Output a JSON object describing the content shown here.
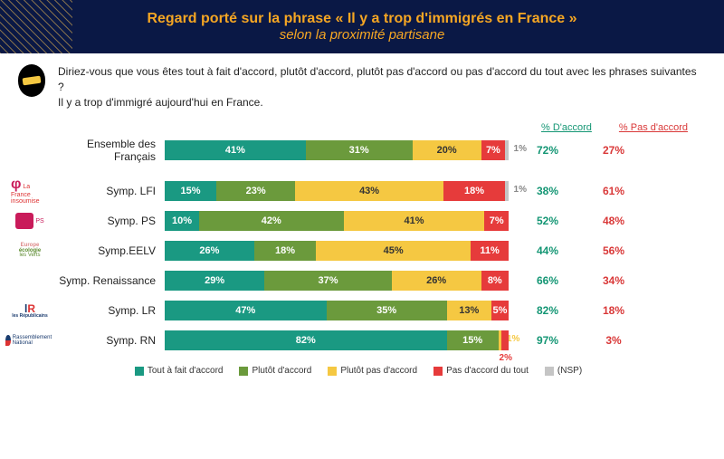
{
  "header": {
    "title": "Regard porté sur la phrase « Il y a trop d'immigrés en France »",
    "subtitle": "selon la proximité partisane"
  },
  "question": {
    "line1": "Diriez-vous que vous êtes tout à fait d'accord, plutôt d'accord, plutôt pas d'accord ou pas d'accord du tout avec les phrases suivantes ?",
    "line2": "Il y a trop d'immigré aujourd'hui en France."
  },
  "colors": {
    "tout_a_fait": "#1a9982",
    "plutot": "#6b9a3c",
    "plutot_pas": "#f5c842",
    "pas_du_tout": "#e63b3b",
    "nsp": "#c5c5c5",
    "agree_text": "#149674",
    "disagree_text": "#d93838"
  },
  "table_head": {
    "agree": "% D'accord",
    "disagree": "% Pas d'accord"
  },
  "rows": [
    {
      "label": "Ensemble des Français",
      "logo": null,
      "segments": [
        41,
        31,
        20,
        7,
        1
      ],
      "agree": 72,
      "disagree": 27
    }
  ],
  "party_rows": [
    {
      "label": "Symp. LFI",
      "logo": "lfi",
      "segments": [
        15,
        23,
        43,
        18,
        1
      ],
      "agree": 38,
      "disagree": 61
    },
    {
      "label": "Symp. PS",
      "logo": "ps",
      "segments": [
        10,
        42,
        41,
        7,
        0
      ],
      "agree": 52,
      "disagree": 48
    },
    {
      "label": "Symp.EELV",
      "logo": "eelv",
      "segments": [
        26,
        18,
        45,
        11,
        0
      ],
      "agree": 44,
      "disagree": 56
    },
    {
      "label": "Symp. Renaissance",
      "logo": null,
      "segments": [
        29,
        37,
        26,
        8,
        0
      ],
      "agree": 66,
      "disagree": 34
    },
    {
      "label": "Symp. LR",
      "logo": "lr",
      "segments": [
        47,
        35,
        13,
        5,
        0
      ],
      "agree": 82,
      "disagree": 18
    },
    {
      "label": "Symp. RN",
      "logo": "rn",
      "segments": [
        82,
        15,
        1,
        2,
        0
      ],
      "agree": 97,
      "disagree": 3,
      "outside_last": true
    }
  ],
  "legend": [
    {
      "label": "Tout à fait d'accord",
      "color": "#1a9982"
    },
    {
      "label": "Plutôt d'accord",
      "color": "#6b9a3c"
    },
    {
      "label": "Plutôt pas d'accord",
      "color": "#f5c842"
    },
    {
      "label": "Pas d'accord du tout",
      "color": "#e63b3b"
    },
    {
      "label": "(NSP)",
      "color": "#c5c5c5"
    }
  ],
  "logos": {
    "lfi": "La France insoumise",
    "eelv_line1": "Europe",
    "eelv_line2": "écologie",
    "eelv_line3": "les Verts",
    "lr_top": "lR",
    "lr_bottom": "les Républicains",
    "rn": "Rassemblement National"
  }
}
